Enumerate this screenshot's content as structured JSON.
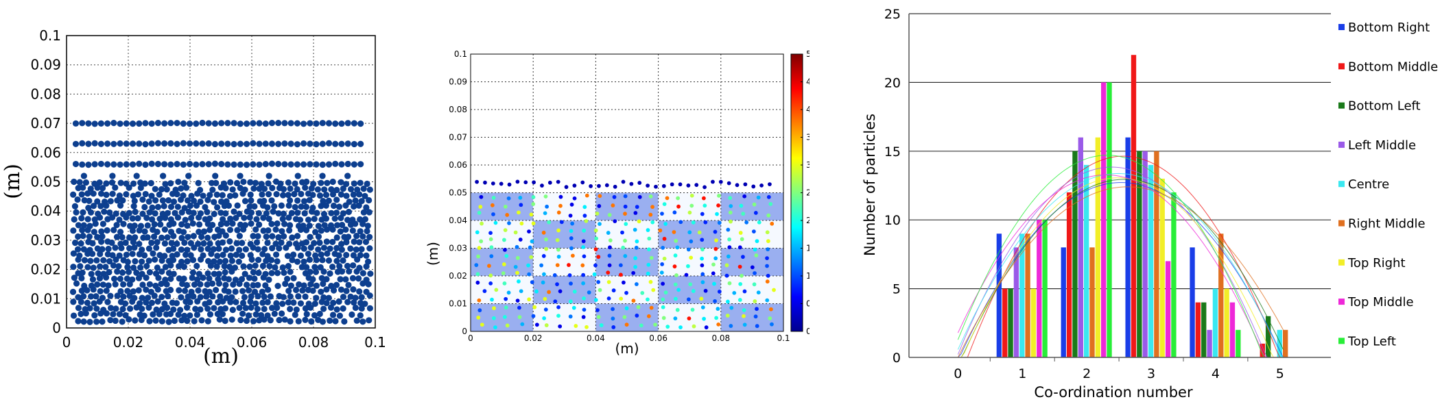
{
  "chart_data": [
    {
      "type": "scatter",
      "title": "",
      "xlabel": "(m)",
      "ylabel": "(m)",
      "xlim": [
        0,
        0.1
      ],
      "ylim": [
        0,
        0.1
      ],
      "xticks": [
        "0",
        "0.02",
        "0.04",
        "0.06",
        "0.08",
        "0.1"
      ],
      "yticks": [
        "0",
        "0.01",
        "0.02",
        "0.03",
        "0.04",
        "0.05",
        "0.06",
        "0.07",
        "0.08",
        "0.09",
        "0.1"
      ],
      "grid": true,
      "marker_color": "#0d3f8f",
      "particle_rows_y": [
        0.07,
        0.063,
        0.056
      ],
      "packed_bed_top": 0.05
    },
    {
      "type": "scatter",
      "title": "",
      "xlabel": "(m)",
      "ylabel": "(m)",
      "xlim": [
        0,
        0.1
      ],
      "ylim": [
        0,
        0.1
      ],
      "xticks": [
        "0",
        "0.02",
        "0.04",
        "0.06",
        "0.08",
        "0.1"
      ],
      "yticks": [
        "0",
        "0.01",
        "0.02",
        "0.03",
        "0.04",
        "0.05",
        "0.06",
        "0.07",
        "0.08",
        "0.09",
        "0.1"
      ],
      "grid": true,
      "packed_bed_top": 0.05,
      "colorbar": {
        "ticks": [
          "0",
          "0.5",
          "1",
          "1.5",
          "2",
          "2.5",
          "3",
          "3.5",
          "4",
          "4.5",
          "5"
        ],
        "range": [
          0,
          5
        ]
      }
    },
    {
      "type": "bar",
      "title": "",
      "xlabel": "Co-ordination number",
      "ylabel": "Number of particles",
      "categories": [
        "0",
        "1",
        "2",
        "3",
        "4",
        "5"
      ],
      "ylim": [
        0,
        25
      ],
      "yticks": [
        "0",
        "5",
        "10",
        "15",
        "20",
        "25"
      ],
      "grid": true,
      "legend_position": "right",
      "series": [
        {
          "name": "Bottom Right",
          "color": "#1a3ee8",
          "values": [
            0,
            9,
            8,
            16,
            8,
            0
          ]
        },
        {
          "name": "Bottom Middle",
          "color": "#f01818",
          "values": [
            0,
            5,
            12,
            22,
            4,
            1
          ]
        },
        {
          "name": "Bottom Left",
          "color": "#1a7a1a",
          "values": [
            0,
            5,
            15,
            15,
            4,
            3
          ]
        },
        {
          "name": "Left Middle",
          "color": "#9a5ae8",
          "values": [
            0,
            8,
            16,
            15,
            2,
            0
          ]
        },
        {
          "name": "Centre",
          "color": "#3ae8f0",
          "values": [
            0,
            9,
            14,
            14,
            5,
            2
          ]
        },
        {
          "name": "Right Middle",
          "color": "#e07020",
          "values": [
            0,
            9,
            8,
            15,
            9,
            2
          ]
        },
        {
          "name": "Top Right",
          "color": "#f2ee28",
          "values": [
            0,
            5,
            16,
            13,
            5,
            0
          ]
        },
        {
          "name": "Top Middle",
          "color": "#ee28d8",
          "values": [
            0,
            10,
            20,
            7,
            4,
            0
          ]
        },
        {
          "name": "Top Left",
          "color": "#28ee38",
          "values": [
            0,
            10,
            20,
            12,
            2,
            0
          ]
        }
      ]
    }
  ]
}
